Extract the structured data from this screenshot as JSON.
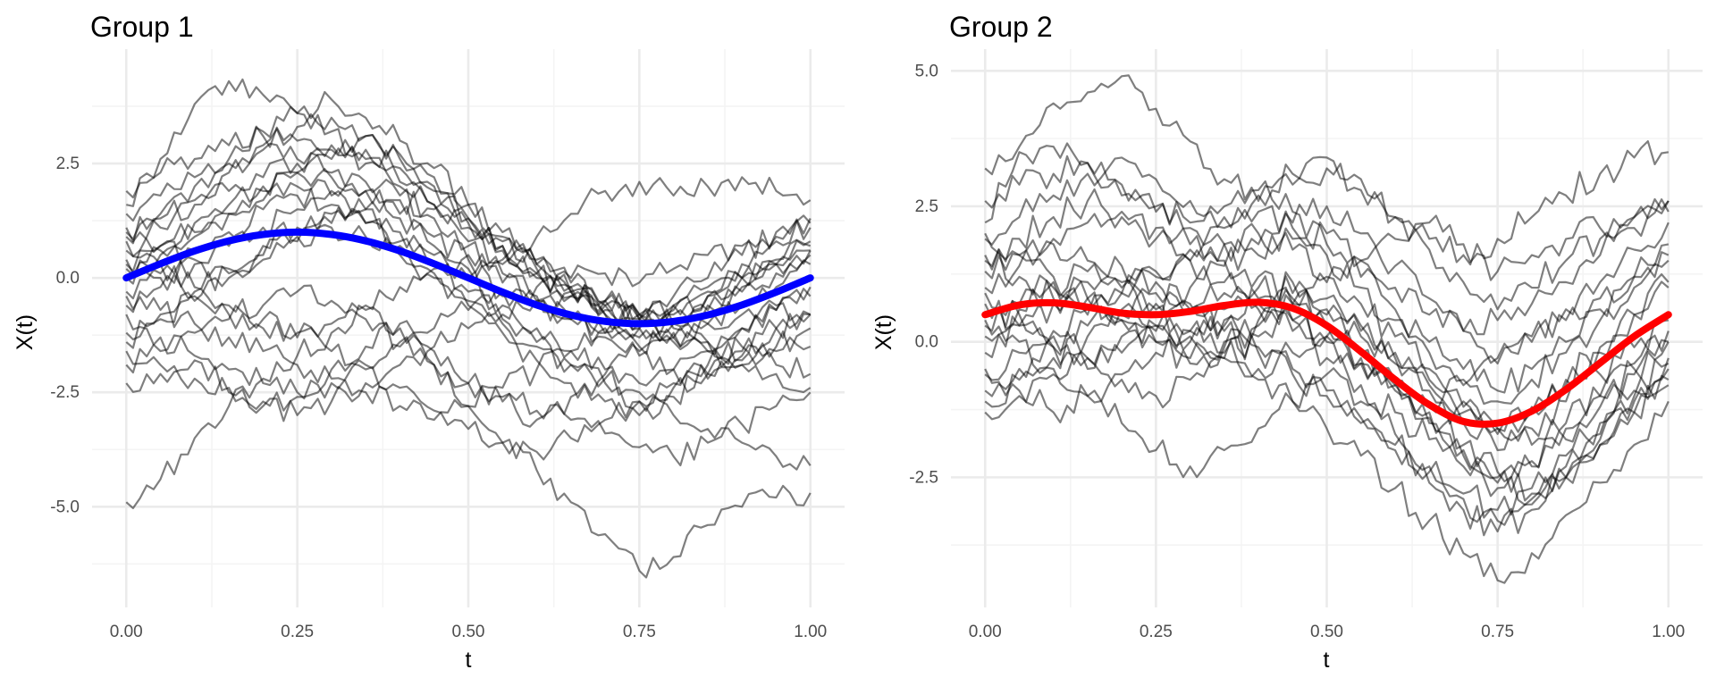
{
  "colors": {
    "background": "#ffffff",
    "grid_major": "#ebebeb",
    "grid_minor": "#f4f4f4",
    "trajectory": "#000000",
    "group1_mean": "#0000ff",
    "group2_mean": "#ff0000",
    "tick_text": "#4d4d4d"
  },
  "chart_data": [
    {
      "type": "line",
      "title": "Group 1",
      "xlabel": "t",
      "ylabel": "X(t)",
      "xlim": [
        -0.05,
        1.05
      ],
      "ylim": [
        -7.2,
        5.0
      ],
      "x_ticks": [
        0,
        0.25,
        0.5,
        0.75,
        1
      ],
      "x_tick_labels": [
        "0.00",
        "0.25",
        "0.50",
        "0.75",
        "1.00"
      ],
      "y_ticks": [
        -5,
        -2.5,
        0,
        2.5
      ],
      "y_tick_labels": [
        "-5.0",
        "-2.5",
        "0.0",
        "2.5"
      ],
      "grid": true,
      "x": [
        0.0,
        0.05,
        0.1,
        0.15,
        0.2,
        0.25,
        0.3,
        0.35,
        0.4,
        0.45,
        0.5,
        0.55,
        0.6,
        0.65,
        0.7,
        0.75,
        0.8,
        0.85,
        0.9,
        0.95,
        1.0
      ],
      "mean": {
        "color": "#0000ff",
        "values": [
          0.0,
          0.31,
          0.59,
          0.81,
          0.95,
          1.0,
          0.95,
          0.81,
          0.59,
          0.31,
          0.0,
          -0.31,
          -0.59,
          -0.81,
          -0.95,
          -1.0,
          -0.95,
          -0.81,
          -0.59,
          -0.31,
          0.0
        ]
      },
      "trajectories": [
        [
          1.6,
          2.6,
          3.8,
          4.3,
          4.0,
          3.6,
          3.2,
          2.6,
          2.0,
          1.6,
          0.8,
          0.4,
          0.9,
          1.4,
          1.9,
          2.1,
          1.8,
          2.0,
          2.2,
          1.9,
          1.7
        ],
        [
          -2.3,
          -2.1,
          -1.8,
          -2.4,
          -2.7,
          -2.6,
          -2.0,
          -1.5,
          -1.0,
          -1.6,
          -2.3,
          -2.7,
          -3.1,
          -2.6,
          -2.1,
          -1.6,
          -1.3,
          -1.0,
          -0.8,
          -0.6,
          -0.8
        ],
        [
          -4.9,
          -4.4,
          -3.5,
          -2.8,
          -2.2,
          -1.7,
          -1.2,
          -0.7,
          -1.1,
          -1.9,
          -2.8,
          -3.6,
          -4.2,
          -4.9,
          -5.6,
          -6.4,
          -6.1,
          -5.4,
          -5.0,
          -4.8,
          -4.7
        ],
        [
          1.0,
          1.4,
          2.0,
          2.6,
          3.2,
          3.6,
          3.9,
          3.5,
          3.0,
          2.4,
          1.6,
          0.9,
          0.3,
          -0.2,
          -0.6,
          -0.9,
          -0.6,
          -0.2,
          0.3,
          0.8,
          1.2
        ],
        [
          0.3,
          0.7,
          1.2,
          1.6,
          2.0,
          2.3,
          2.2,
          1.9,
          1.4,
          0.9,
          0.4,
          -0.1,
          -0.5,
          -0.9,
          -1.2,
          -1.5,
          -1.3,
          -1.0,
          -0.6,
          -0.2,
          0.3
        ],
        [
          -1.4,
          -0.9,
          -0.5,
          0.0,
          0.5,
          0.9,
          1.1,
          0.9,
          0.5,
          0.0,
          -0.6,
          -1.2,
          -1.8,
          -2.3,
          -2.7,
          -3.0,
          -2.6,
          -2.1,
          -1.6,
          -1.1,
          -0.8
        ],
        [
          0.8,
          0.3,
          -0.2,
          -0.6,
          -0.9,
          -1.2,
          -1.6,
          -2.0,
          -2.4,
          -2.9,
          -3.3,
          -3.6,
          -3.8,
          -3.5,
          -3.1,
          -2.7,
          -2.3,
          -1.9,
          -1.5,
          -1.1,
          -0.8
        ],
        [
          1.4,
          1.8,
          2.2,
          2.5,
          2.8,
          2.6,
          2.3,
          1.9,
          1.3,
          0.7,
          0.2,
          -0.3,
          -0.6,
          -0.9,
          -1.1,
          -1.3,
          -1.0,
          -0.6,
          -0.2,
          0.3,
          0.8
        ],
        [
          -0.3,
          0.1,
          0.6,
          1.0,
          1.5,
          1.8,
          1.6,
          1.2,
          0.7,
          0.1,
          -0.5,
          -1.0,
          -1.5,
          -1.9,
          -2.2,
          -2.5,
          -2.4,
          -2.1,
          -1.8,
          -1.6,
          -1.5
        ],
        [
          -1.9,
          -1.6,
          -1.2,
          -0.9,
          -0.6,
          -0.3,
          -0.5,
          -0.9,
          -1.4,
          -1.9,
          -2.3,
          -2.6,
          -2.9,
          -3.1,
          -3.4,
          -3.7,
          -3.9,
          -3.6,
          -3.2,
          -2.8,
          -2.5
        ],
        [
          0.6,
          1.1,
          1.7,
          2.3,
          2.9,
          3.3,
          3.5,
          3.1,
          2.6,
          2.0,
          1.3,
          0.7,
          0.1,
          -0.4,
          -0.8,
          -1.1,
          -1.4,
          -1.6,
          -1.9,
          -2.1,
          -2.4
        ],
        [
          -0.8,
          -1.3,
          -1.7,
          -2.0,
          -2.3,
          -2.5,
          -2.3,
          -1.9,
          -1.5,
          -1.1,
          -0.7,
          -0.4,
          -0.2,
          0.0,
          0.1,
          -0.1,
          0.2,
          0.5,
          0.7,
          0.9,
          1.1
        ],
        [
          1.1,
          0.7,
          0.4,
          0.1,
          0.4,
          0.8,
          1.2,
          1.5,
          1.7,
          1.5,
          1.2,
          0.8,
          0.3,
          -0.2,
          -0.5,
          -0.8,
          -0.4,
          0.0,
          0.5,
          1.0,
          1.3
        ],
        [
          0.0,
          0.5,
          0.9,
          1.4,
          1.9,
          2.3,
          2.6,
          2.8,
          2.4,
          1.9,
          1.3,
          0.7,
          0.2,
          -0.3,
          -0.7,
          -1.0,
          -1.2,
          -1.4,
          -1.1,
          -0.7,
          -0.4
        ],
        [
          -1.2,
          -0.8,
          -0.3,
          0.2,
          0.7,
          1.1,
          1.4,
          1.2,
          0.8,
          0.3,
          -0.3,
          -0.9,
          -1.4,
          -1.9,
          -2.3,
          -2.7,
          -3.0,
          -3.3,
          -3.6,
          -3.9,
          -4.1
        ],
        [
          0.4,
          0.0,
          -0.4,
          -0.8,
          -1.1,
          -1.3,
          -1.0,
          -0.6,
          -0.2,
          0.2,
          0.5,
          0.3,
          0.0,
          -0.4,
          -0.8,
          -1.1,
          -0.8,
          -0.4,
          0.0,
          0.4,
          0.7
        ],
        [
          1.9,
          2.3,
          2.6,
          2.9,
          3.1,
          3.0,
          2.8,
          2.5,
          2.1,
          1.6,
          1.1,
          0.6,
          0.1,
          -0.3,
          -0.6,
          -0.9,
          -0.7,
          -0.4,
          0.0,
          0.3,
          0.6
        ],
        [
          -0.6,
          -0.2,
          0.3,
          0.7,
          1.1,
          1.5,
          1.9,
          2.1,
          1.8,
          1.3,
          0.7,
          0.1,
          -0.4,
          -0.9,
          -1.3,
          -1.7,
          -2.0,
          -2.2,
          -1.9,
          -1.5,
          -1.1
        ],
        [
          0.9,
          1.3,
          1.6,
          1.9,
          2.2,
          2.5,
          2.9,
          3.1,
          2.7,
          2.2,
          1.6,
          1.0,
          0.4,
          -0.1,
          -0.5,
          -0.8,
          -1.0,
          -0.7,
          -0.3,
          0.1,
          0.5
        ],
        [
          -1.6,
          -1.9,
          -2.2,
          -2.5,
          -2.8,
          -3.0,
          -2.7,
          -2.3,
          -1.9,
          -1.5,
          -1.1,
          -0.8,
          -0.5,
          -0.3,
          -0.5,
          -0.8,
          -1.1,
          -1.4,
          -1.7,
          -1.9,
          -2.1
        ],
        [
          0.2,
          0.6,
          1.0,
          1.4,
          1.7,
          2.0,
          1.8,
          1.5,
          1.0,
          0.5,
          0.0,
          -0.6,
          -1.1,
          -1.6,
          -2.0,
          -2.3,
          -2.0,
          -1.6,
          -1.1,
          -0.7,
          -0.2
        ],
        [
          -0.4,
          -0.7,
          -1.0,
          -1.3,
          -1.6,
          -1.9,
          -2.2,
          -2.5,
          -2.8,
          -3.1,
          -2.8,
          -2.4,
          -2.0,
          -1.6,
          -1.2,
          -0.9,
          -0.6,
          -0.3,
          0.0,
          0.3,
          0.6
        ]
      ]
    },
    {
      "type": "line",
      "title": "Group 2",
      "xlabel": "t",
      "ylabel": "X(t)",
      "xlim": [
        -0.05,
        1.05
      ],
      "ylim": [
        -4.9,
        5.4
      ],
      "x_ticks": [
        0,
        0.25,
        0.5,
        0.75,
        1
      ],
      "x_tick_labels": [
        "0.00",
        "0.25",
        "0.50",
        "0.75",
        "1.00"
      ],
      "y_ticks": [
        -2.5,
        0,
        2.5,
        5
      ],
      "y_tick_labels": [
        "-2.5",
        "0.0",
        "2.5",
        "5.0"
      ],
      "grid": true,
      "x": [
        0.0,
        0.05,
        0.1,
        0.15,
        0.2,
        0.25,
        0.3,
        0.35,
        0.4,
        0.45,
        0.5,
        0.55,
        0.6,
        0.65,
        0.7,
        0.75,
        0.8,
        0.85,
        0.9,
        0.95,
        1.0
      ],
      "mean": {
        "color": "#ff0000",
        "values": [
          0.5,
          0.68,
          0.72,
          0.64,
          0.53,
          0.5,
          0.56,
          0.67,
          0.73,
          0.62,
          0.3,
          -0.18,
          -0.7,
          -1.16,
          -1.47,
          -1.5,
          -1.28,
          -0.88,
          -0.39,
          0.1,
          0.5
        ]
      },
      "trajectories": [
        [
          3.2,
          3.6,
          4.4,
          4.6,
          4.9,
          4.3,
          3.7,
          3.0,
          2.6,
          2.9,
          3.2,
          2.8,
          2.3,
          1.9,
          1.6,
          1.9,
          2.3,
          2.7,
          3.1,
          3.4,
          3.5
        ],
        [
          2.2,
          3.5,
          3.6,
          3.3,
          2.7,
          2.4,
          2.1,
          1.8,
          1.6,
          1.9,
          2.0,
          1.5,
          1.0,
          0.5,
          0.2,
          0.4,
          0.7,
          1.1,
          1.6,
          2.1,
          2.6
        ],
        [
          -1.3,
          -1.0,
          -0.6,
          -0.3,
          0.1,
          0.3,
          0.1,
          -0.3,
          -0.7,
          -1.1,
          -1.6,
          -2.1,
          -2.7,
          -3.3,
          -3.9,
          -4.4,
          -3.9,
          -3.2,
          -2.6,
          -1.9,
          -1.1
        ],
        [
          1.9,
          2.3,
          2.7,
          3.1,
          3.4,
          3.0,
          2.6,
          2.3,
          2.7,
          3.1,
          3.4,
          3.0,
          2.3,
          1.7,
          1.1,
          0.6,
          1.0,
          1.5,
          1.9,
          2.3,
          2.6
        ],
        [
          0.4,
          0.0,
          -0.5,
          -1.0,
          -1.5,
          -2.0,
          -2.3,
          -2.0,
          -1.6,
          -1.1,
          -0.6,
          -1.1,
          -1.7,
          -2.3,
          -2.9,
          -3.3,
          -3.0,
          -2.5,
          -1.8,
          -1.0,
          -0.3
        ],
        [
          1.3,
          1.6,
          1.9,
          2.2,
          2.4,
          2.1,
          1.8,
          1.5,
          1.2,
          0.9,
          0.6,
          0.2,
          -0.3,
          -0.8,
          -1.3,
          -1.7,
          -1.3,
          -0.8,
          -0.2,
          0.5,
          1.1
        ],
        [
          -0.6,
          -0.2,
          0.2,
          0.6,
          0.9,
          1.2,
          1.5,
          1.8,
          2.0,
          1.7,
          1.2,
          0.7,
          0.1,
          -0.5,
          -1.1,
          -1.6,
          -1.2,
          -0.7,
          -0.1,
          0.5,
          1.0
        ],
        [
          0.9,
          0.5,
          0.1,
          -0.3,
          -0.7,
          -1.0,
          -0.7,
          -0.3,
          0.1,
          0.4,
          0.1,
          -0.4,
          -0.9,
          -1.5,
          -2.1,
          -2.6,
          -2.3,
          -1.8,
          -1.2,
          -0.6,
          0.0
        ],
        [
          2.6,
          2.9,
          3.1,
          3.3,
          2.9,
          2.5,
          2.2,
          2.5,
          2.8,
          2.4,
          1.8,
          1.2,
          0.6,
          0.0,
          -0.5,
          -0.9,
          -0.5,
          0.0,
          0.6,
          1.2,
          1.8
        ],
        [
          -0.2,
          0.3,
          0.7,
          1.1,
          1.4,
          1.1,
          0.7,
          0.3,
          -0.1,
          -0.5,
          -0.9,
          -1.4,
          -1.9,
          -2.4,
          -2.8,
          -3.1,
          -2.7,
          -2.1,
          -1.5,
          -0.9,
          -0.4
        ],
        [
          1.6,
          1.2,
          0.8,
          0.5,
          0.9,
          1.3,
          1.7,
          2.1,
          2.4,
          2.1,
          1.6,
          1.0,
          0.4,
          -0.2,
          -0.7,
          -1.1,
          -0.7,
          -0.2,
          0.4,
          1.0,
          1.5
        ],
        [
          0.1,
          0.6,
          1.0,
          1.3,
          1.0,
          0.6,
          0.2,
          -0.2,
          -0.5,
          -0.2,
          0.1,
          -0.3,
          -0.8,
          -1.4,
          -2.0,
          -2.5,
          -2.8,
          -2.3,
          -1.7,
          -1.1,
          -0.5
        ],
        [
          -0.9,
          -0.5,
          -0.1,
          0.3,
          0.6,
          0.3,
          0.0,
          0.4,
          0.8,
          1.1,
          0.8,
          0.3,
          -0.2,
          -0.7,
          -1.2,
          -1.6,
          -1.9,
          -1.5,
          -1.0,
          -0.5,
          0.0
        ],
        [
          1.0,
          1.4,
          1.8,
          1.5,
          1.1,
          0.7,
          1.0,
          1.4,
          1.8,
          2.2,
          2.5,
          2.0,
          1.4,
          0.8,
          0.2,
          -0.3,
          0.1,
          0.6,
          1.1,
          1.7,
          2.2
        ],
        [
          0.7,
          0.3,
          -0.1,
          -0.5,
          -0.2,
          0.2,
          0.6,
          0.9,
          0.6,
          0.2,
          -0.3,
          -0.8,
          -1.3,
          -1.8,
          -2.3,
          -2.7,
          -2.2,
          -1.6,
          -1.0,
          -0.4,
          0.2
        ],
        [
          2.0,
          1.6,
          1.2,
          0.8,
          0.4,
          0.0,
          -0.4,
          -0.1,
          0.3,
          0.7,
          1.1,
          1.5,
          1.9,
          2.2,
          1.8,
          1.3,
          1.6,
          1.9,
          2.1,
          2.3,
          2.4
        ],
        [
          -0.5,
          -0.9,
          -1.3,
          -1.0,
          -0.6,
          -0.2,
          0.2,
          0.6,
          1.0,
          0.7,
          0.3,
          -0.2,
          -0.7,
          -1.3,
          -1.9,
          -2.4,
          -2.9,
          -2.5,
          -1.9,
          -1.3,
          -0.7
        ],
        [
          1.5,
          1.9,
          2.3,
          2.6,
          2.3,
          1.9,
          1.5,
          1.1,
          0.7,
          0.4,
          0.0,
          -0.4,
          -0.8,
          -1.2,
          -0.8,
          -0.4,
          0.0,
          0.4,
          0.8,
          1.2,
          1.6
        ],
        [
          0.3,
          0.7,
          1.1,
          0.8,
          0.4,
          0.0,
          -0.3,
          0.0,
          0.4,
          0.8,
          0.5,
          0.1,
          -0.4,
          -0.9,
          -1.5,
          -2.0,
          -1.6,
          -1.1,
          -0.6,
          -0.1,
          0.4
        ],
        [
          -1.1,
          -0.7,
          -0.3,
          0.1,
          0.5,
          0.9,
          0.6,
          0.2,
          -0.2,
          -0.6,
          -1.0,
          -1.5,
          -2.0,
          -2.6,
          -3.1,
          -3.5,
          -3.1,
          -2.5,
          -1.9,
          -1.3,
          -0.8
        ]
      ]
    }
  ]
}
